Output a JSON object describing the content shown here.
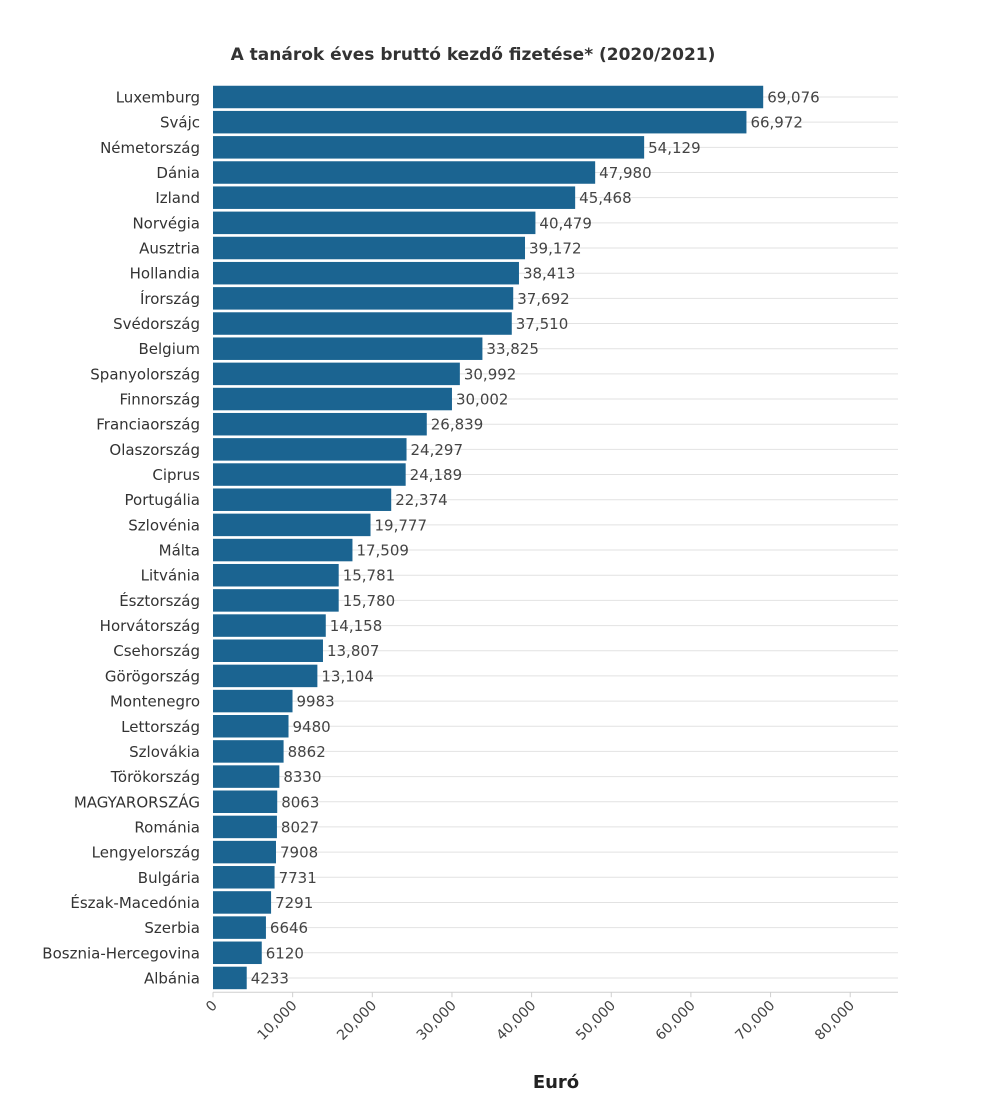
{
  "chart_data": {
    "type": "bar",
    "orientation": "horizontal",
    "title": "A tanárok éves bruttó kezdő fizetése* (2020/2021)",
    "xlabel": "Euró",
    "ylabel": "",
    "xlim": [
      0,
      86000
    ],
    "grid": true,
    "bar_color": "#1b6491",
    "x_ticks": [
      0,
      10000,
      20000,
      30000,
      40000,
      50000,
      60000,
      70000,
      80000
    ],
    "x_tick_labels": [
      "0",
      "10,000",
      "20,000",
      "30,000",
      "40,000",
      "50,000",
      "60,000",
      "70,000",
      "80,000"
    ],
    "categories": [
      "Luxemburg",
      "Svájc",
      "Németország",
      "Dánia",
      "Izland",
      "Norvégia",
      "Ausztria",
      "Hollandia",
      "Írország",
      "Svédország",
      "Belgium",
      "Spanyolország",
      "Finnország",
      "Franciaország",
      "Olaszország",
      "Ciprus",
      "Portugália",
      "Szlovénia",
      "Málta",
      "Litvánia",
      "Észtország",
      "Horvátország",
      "Csehország",
      "Görögország",
      "Montenegro",
      "Lettország",
      "Szlovákia",
      "Törökország",
      "MAGYARORSZÁG",
      "Románia",
      "Lengyelország",
      "Bulgária",
      "Észak-Macedónia",
      "Szerbia",
      "Bosznia-Hercegovina",
      "Albánia"
    ],
    "values": [
      69076,
      66972,
      54129,
      47980,
      45468,
      40479,
      39172,
      38413,
      37692,
      37510,
      33825,
      30992,
      30002,
      26839,
      24297,
      24189,
      22374,
      19777,
      17509,
      15781,
      15780,
      14158,
      13807,
      13104,
      9983,
      9480,
      8862,
      8330,
      8063,
      8027,
      7908,
      7731,
      7291,
      6646,
      6120,
      4233
    ],
    "value_labels": [
      "69,076",
      "66,972",
      "54,129",
      "47,980",
      "45,468",
      "40,479",
      "39,172",
      "38,413",
      "37,692",
      "37,510",
      "33,825",
      "30,992",
      "30,002",
      "26,839",
      "24,297",
      "24,189",
      "22,374",
      "19,777",
      "17,509",
      "15,781",
      "15,780",
      "14,158",
      "13,807",
      "13,104",
      "9983",
      "9480",
      "8862",
      "8330",
      "8063",
      "8027",
      "7908",
      "7731",
      "7291",
      "6646",
      "6120",
      "4233"
    ]
  }
}
